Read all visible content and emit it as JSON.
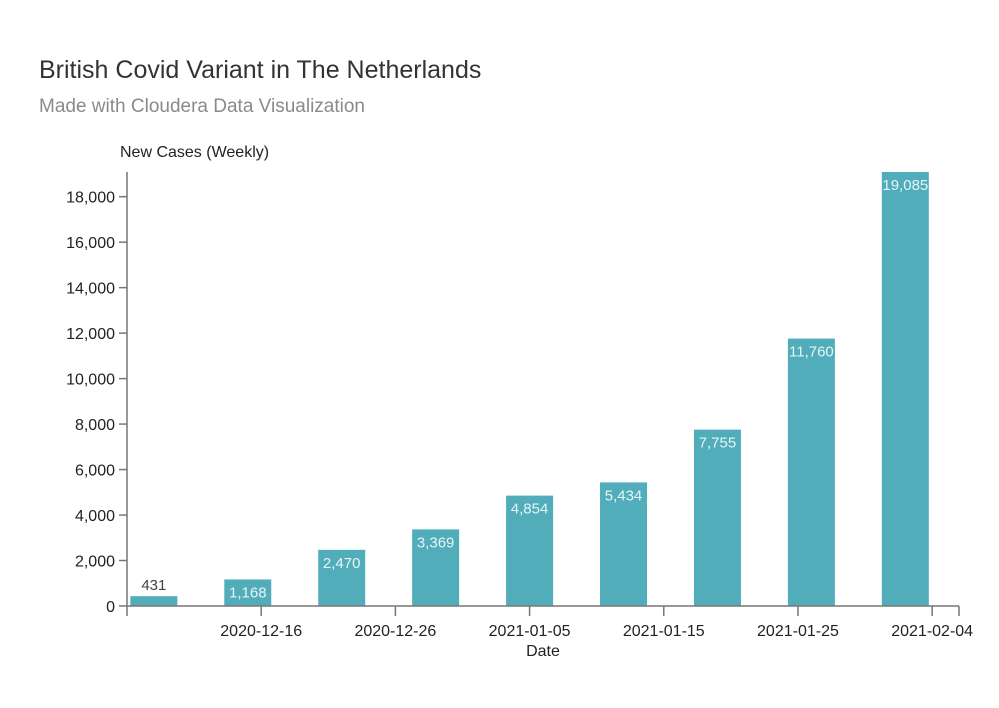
{
  "chart_data": {
    "type": "bar",
    "title": "British Covid Variant in The Netherlands",
    "subtitle": "Made with Cloudera Data Visualization",
    "xlabel": "Date",
    "ylabel": "New Cases (Weekly)",
    "x": [
      "2020-12-08",
      "2020-12-15",
      "2020-12-22",
      "2020-12-29",
      "2021-01-05",
      "2021-01-12",
      "2021-01-19",
      "2021-01-26",
      "2021-02-02"
    ],
    "values": [
      431,
      1168,
      2470,
      3369,
      4854,
      5434,
      7755,
      11760,
      19085
    ],
    "data_labels": [
      "431",
      "1,168",
      "2,470",
      "3,369",
      "4,854",
      "5,434",
      "7,755",
      "11,760",
      "19,085"
    ],
    "xlim": [
      "2020-12-06",
      "2021-02-06"
    ],
    "ylim": [
      0,
      19085
    ],
    "x_ticks": [
      "2020-12-16",
      "2020-12-26",
      "2021-01-05",
      "2021-01-15",
      "2021-01-25",
      "2021-02-04"
    ],
    "y_ticks": [
      0,
      2000,
      4000,
      6000,
      8000,
      10000,
      12000,
      14000,
      16000,
      18000
    ],
    "y_tick_labels": [
      "0",
      "2,000",
      "4,000",
      "6,000",
      "8,000",
      "10,000",
      "12,000",
      "14,000",
      "16,000",
      "18,000"
    ],
    "grid": false,
    "colors": {
      "bar": "#52adbb",
      "label_inside": "#e6f4f6",
      "label_outside": "#444444",
      "axis": "#777777"
    }
  }
}
